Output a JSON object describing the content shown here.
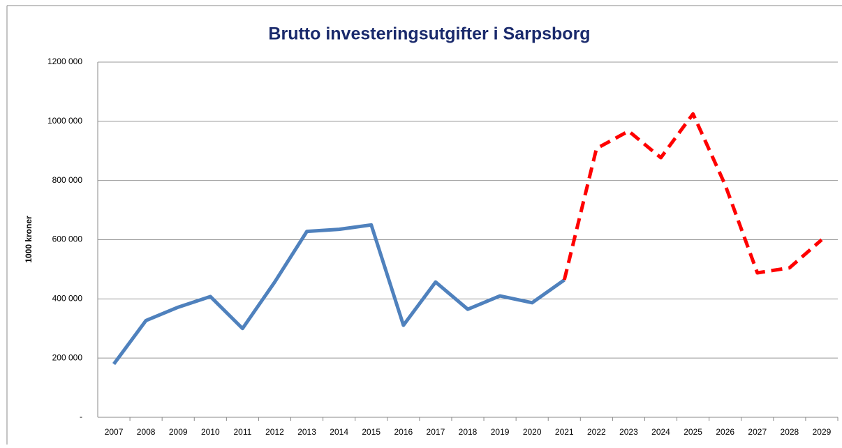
{
  "chart_data": {
    "type": "line",
    "title": "Brutto investeringsutgifter i Sarpsborg",
    "ylabel": "1000 kroner",
    "categories": [
      "2007",
      "2008",
      "2009",
      "2010",
      "2011",
      "2012",
      "2013",
      "2014",
      "2015",
      "2016",
      "2017",
      "2018",
      "2019",
      "2020",
      "2021",
      "2022",
      "2023",
      "2024",
      "2025",
      "2026",
      "2027",
      "2028",
      "2029"
    ],
    "series": [
      {
        "color": "#4f81bd",
        "dashed": false,
        "values": [
          180000,
          327000,
          372000,
          408000,
          300000,
          457000,
          628000,
          635000,
          650000,
          311000,
          457000,
          365000,
          410000,
          387000,
          464000,
          null,
          null,
          null,
          null,
          null,
          null,
          null,
          null
        ]
      },
      {
        "color": "#ff0000",
        "dashed": true,
        "values": [
          null,
          null,
          null,
          null,
          null,
          null,
          null,
          null,
          null,
          null,
          null,
          null,
          null,
          null,
          464000,
          908000,
          967000,
          877000,
          1025000,
          785000,
          488000,
          505000,
          600000
        ]
      }
    ],
    "ylim": [
      0,
      1200000
    ],
    "yticks": [
      {
        "value": 0,
        "label": "-"
      },
      {
        "value": 200000,
        "label": "200 000"
      },
      {
        "value": 400000,
        "label": "400 000"
      },
      {
        "value": 600000,
        "label": "600 000"
      },
      {
        "value": 800000,
        "label": "800 000"
      },
      {
        "value": 1000000,
        "label": "1000 000"
      },
      {
        "value": 1200000,
        "label": "1200 000"
      }
    ],
    "grid": true
  }
}
